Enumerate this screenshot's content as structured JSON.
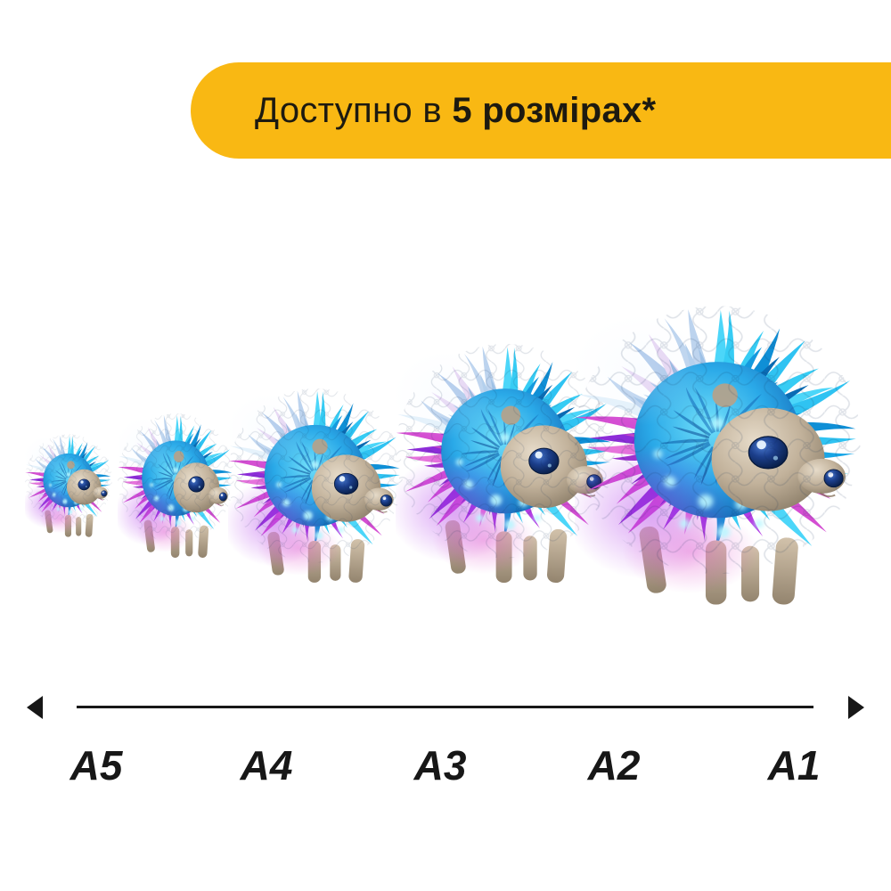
{
  "banner": {
    "prefix": "Доступно в ",
    "highlight": "5 розмірах*",
    "bg_color": "#F9B813",
    "text_color": "#1D1A10"
  },
  "size_scale": {
    "labels": [
      "A5",
      "A4",
      "A3",
      "A2",
      "A1"
    ],
    "line_color": "#171717"
  },
  "hedgehogs": {
    "count": 5,
    "palette": {
      "spike_cyan": [
        "#2fc3f2",
        "#17a5e6",
        "#4cd6f9",
        "#0f8fd6",
        "#36ccf4"
      ],
      "spike_cyan_inner": [
        "#149ade",
        "#0b7cc6",
        "#1fb2ec",
        "#0a6cb4"
      ],
      "spike_ice": [
        "#d3e4f5",
        "#bcd3ee",
        "#e4f1fb",
        "#a8c4e8",
        "#e6d4f2",
        "#d9c4ee"
      ],
      "spike_ice_inner": [
        "#9cc0e6",
        "#8cb0dc",
        "#b0cdec"
      ],
      "spike_purple": [
        "#b43ce4",
        "#8d2dd8",
        "#d44ed2",
        "#e673dc",
        "#9a36e0"
      ],
      "spike_purple_inner": [
        "#7a28c4",
        "#9b30cc",
        "#c246c6"
      ],
      "spike_dark_inner": [
        "#0c5aa8",
        "#0a4a94",
        "#1368b8"
      ],
      "body_center": "#72e0fa",
      "body_edge": "#1668b6",
      "face": "#c2b29b",
      "eye": "#0a2558",
      "glow_purple": "#b03ae8",
      "glow_magenta": "#e14ec8",
      "leg": "#d2c2ab"
    }
  }
}
